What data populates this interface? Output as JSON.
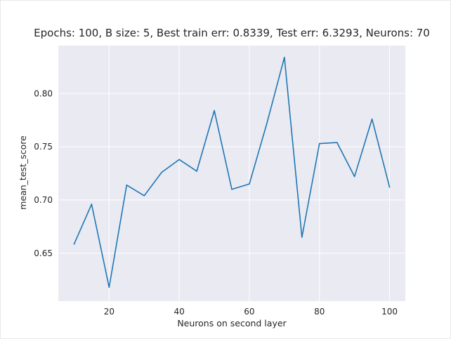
{
  "chart_data": {
    "type": "line",
    "title": "Epochs: 100, B size: 5, Best train err: 0.8339, Test err: 6.3293, Neurons: 70",
    "xlabel": "Neurons on second layer",
    "ylabel": "mean_test_score",
    "xlim": [
      5.5,
      104.5
    ],
    "ylim": [
      0.605,
      0.845
    ],
    "xticks": [
      20,
      40,
      60,
      80,
      100
    ],
    "yticks": [
      0.65,
      0.7,
      0.75,
      0.8
    ],
    "ytick_labels": [
      "0.65",
      "0.70",
      "0.75",
      "0.80"
    ],
    "grid": true,
    "colors": {
      "line": "#1f77b4",
      "plot_bg": "#eaeaf2",
      "grid": "#ffffff"
    },
    "series": [
      {
        "x": [
          10,
          15,
          20,
          25,
          30,
          35,
          40,
          45,
          50,
          55,
          60,
          65,
          70,
          75,
          80,
          85,
          90,
          95,
          100
        ],
        "values": [
          0.6585,
          0.696,
          0.618,
          0.714,
          0.704,
          0.726,
          0.738,
          0.727,
          0.784,
          0.71,
          0.715,
          0.772,
          0.834,
          0.665,
          0.753,
          0.754,
          0.722,
          0.776,
          0.712
        ]
      }
    ]
  }
}
